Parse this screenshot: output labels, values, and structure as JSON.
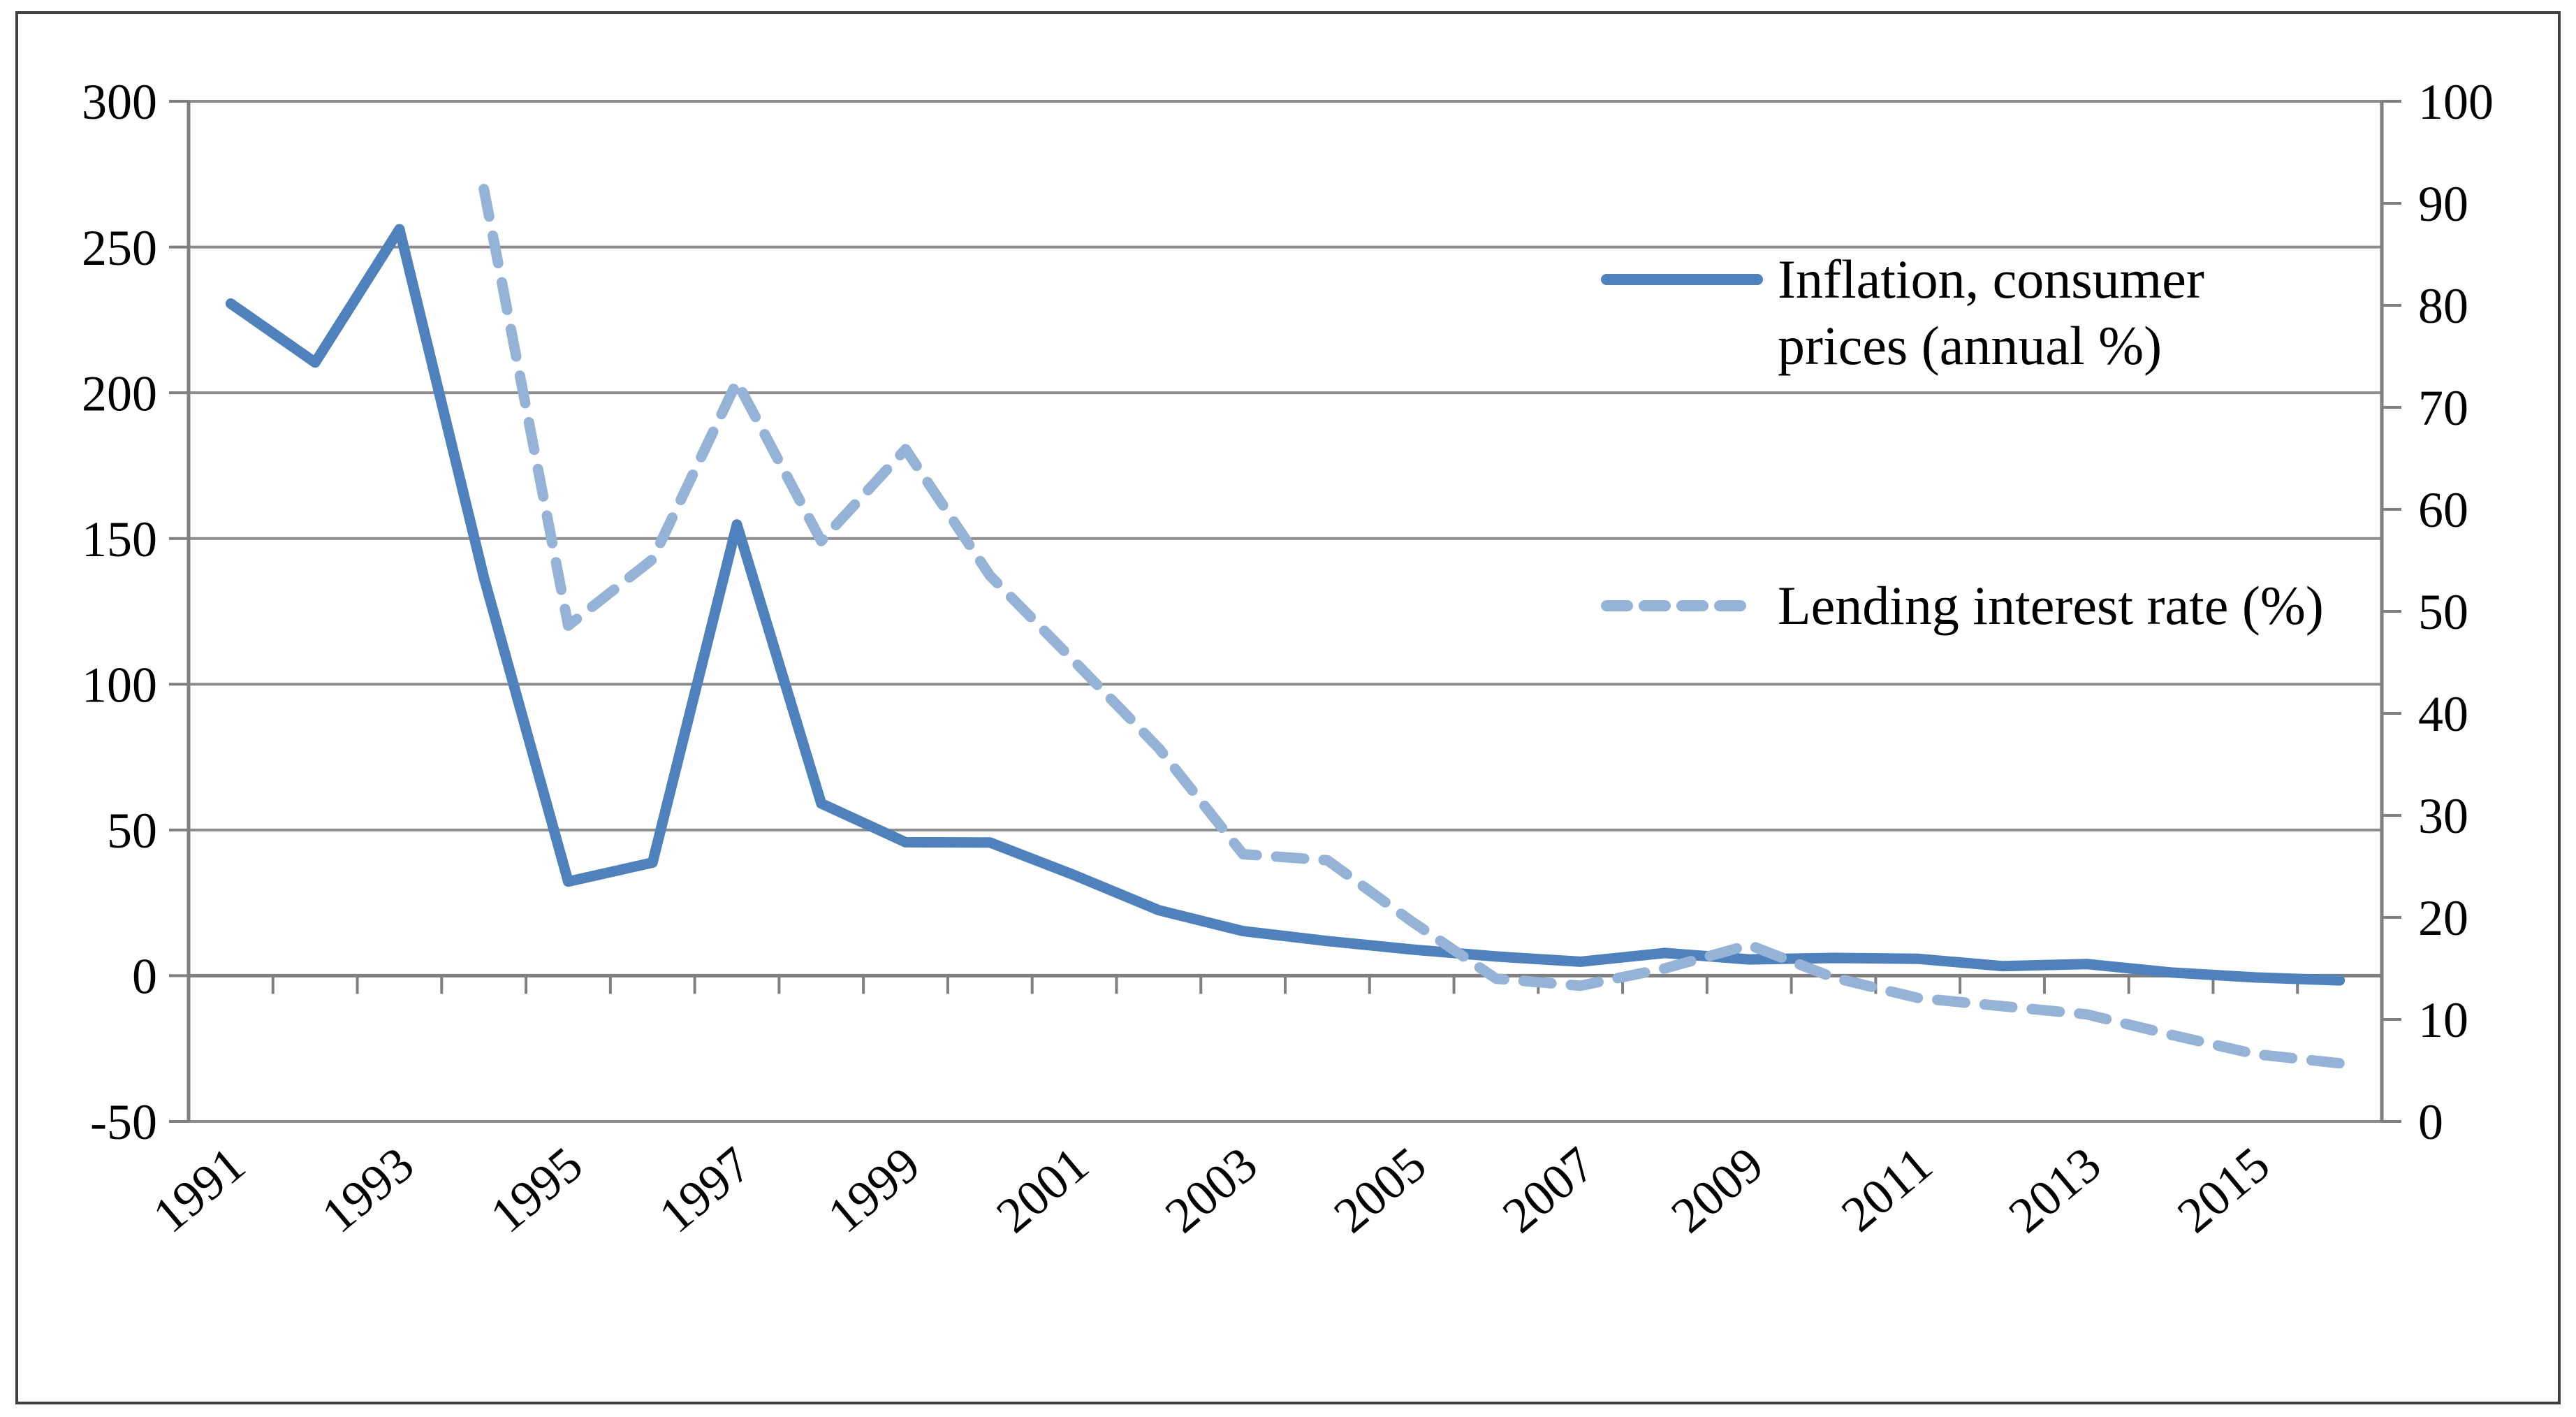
{
  "chart_data": {
    "type": "line",
    "title": "",
    "x": [
      1991,
      1992,
      1993,
      1994,
      1995,
      1996,
      1997,
      1998,
      1999,
      2000,
      2001,
      2002,
      2003,
      2004,
      2005,
      2006,
      2007,
      2008,
      2009,
      2010,
      2011,
      2012,
      2013,
      2014,
      2015,
      2016
    ],
    "x_tick_labels": [
      "1991",
      "1993",
      "1995",
      "1997",
      "1999",
      "2001",
      "2003",
      "2005",
      "2007",
      "2009",
      "2011",
      "2013",
      "2015"
    ],
    "series": [
      {
        "name": "Inflation, consumer prices (annual %)",
        "axis": "left",
        "line_style": "solid",
        "color": "#4F81BD",
        "values": [
          230.6,
          210.4,
          256.1,
          136.7,
          32.3,
          38.8,
          154.8,
          59.1,
          45.8,
          45.7,
          34.5,
          22.5,
          15.3,
          11.9,
          9.0,
          6.6,
          4.8,
          7.8,
          5.6,
          6.1,
          5.8,
          3.3,
          4.0,
          1.1,
          -0.6,
          -1.6
        ]
      },
      {
        "name": "Lending interest rate (%)",
        "axis": "right",
        "line_style": "dashed",
        "color": "#95B3D7",
        "values": [
          null,
          null,
          null,
          91.4,
          48.6,
          55.1,
          72.5,
          56.9,
          65.9,
          53.5,
          45.1,
          36.6,
          26.2,
          25.6,
          19.6,
          14.0,
          13.3,
          15.0,
          17.3,
          14.1,
          12.1,
          11.3,
          10.5,
          8.5,
          6.6,
          5.7
        ]
      }
    ],
    "left_axis": {
      "min": -50,
      "max": 300,
      "step": 50,
      "labels": [
        "300",
        "250",
        "200",
        "150",
        "100",
        "50",
        "0",
        "-50"
      ]
    },
    "right_axis": {
      "min": 0,
      "max": 100,
      "step": 10,
      "labels": [
        "100",
        "90",
        "80",
        "70",
        "60",
        "50",
        "40",
        "30",
        "20",
        "10",
        "0"
      ]
    },
    "grid": true,
    "legend_position": "right-center",
    "colors": {
      "gridline": "#8C8C8C",
      "axis": "#7F7F7F",
      "text": "#000000",
      "border": "#404040"
    }
  },
  "legend": {
    "entry1_line1": "Inflation, consumer",
    "entry1_line2": "prices (annual %)",
    "entry2": "Lending interest rate (%)"
  }
}
